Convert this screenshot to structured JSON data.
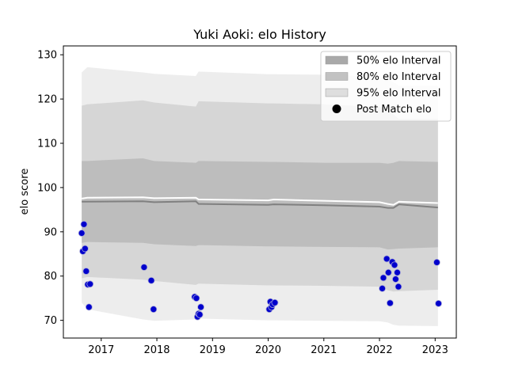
{
  "chart_data": {
    "type": "line",
    "title": "Yuki Aoki: elo History",
    "xlabel": "",
    "ylabel": "elo score",
    "xlim": [
      2016.32,
      2023.38
    ],
    "ylim": [
      66,
      132
    ],
    "x_ticks": [
      2017,
      2018,
      2019,
      2020,
      2021,
      2022,
      2023
    ],
    "y_ticks": [
      70,
      80,
      90,
      100,
      110,
      120,
      130
    ],
    "grid": false,
    "legend_position": "upper right",
    "legend": [
      {
        "label": "50% elo Interval",
        "kind": "band",
        "color": "#a9a9a9"
      },
      {
        "label": "80% elo Interval",
        "kind": "band",
        "color": "#c2c2c2"
      },
      {
        "label": "95% elo Interval",
        "kind": "band",
        "color": "#dedede"
      },
      {
        "label": "Post Match elo",
        "kind": "marker",
        "color": "#000000"
      }
    ],
    "bands": {
      "x": [
        2016.65,
        2016.75,
        2017.75,
        2017.95,
        2018.7,
        2018.75,
        2020.0,
        2020.1,
        2021.0,
        2022.0,
        2022.15,
        2022.25,
        2022.35,
        2023.05
      ],
      "p95_upper": [
        126.0,
        127.2,
        126.0,
        125.7,
        125.2,
        126.2,
        125.6,
        125.6,
        125.5,
        125.0,
        124.5,
        123.8,
        123.0,
        123.0
      ],
      "p80_upper": [
        118.5,
        118.8,
        119.7,
        119.2,
        118.3,
        119.5,
        119.0,
        119.0,
        118.8,
        118.2,
        117.8,
        116.5,
        115.5,
        115.5
      ],
      "p50_upper": [
        106.0,
        106.0,
        106.6,
        106.0,
        105.6,
        106.0,
        105.8,
        105.8,
        105.6,
        105.6,
        105.4,
        105.6,
        106.0,
        105.8
      ],
      "p50_lower": [
        87.5,
        87.7,
        87.5,
        87.2,
        86.8,
        87.0,
        86.7,
        86.7,
        86.6,
        86.5,
        86.0,
        86.1,
        86.2,
        86.5
      ],
      "p80_lower": [
        79.5,
        79.8,
        79.2,
        78.9,
        78.0,
        78.3,
        77.9,
        77.9,
        77.8,
        77.6,
        76.8,
        76.5,
        76.6,
        76.9
      ],
      "p95_lower": [
        74.0,
        72.5,
        70.2,
        69.9,
        70.2,
        70.4,
        70.0,
        70.0,
        69.9,
        69.8,
        69.5,
        69.0,
        68.8,
        68.7
      ]
    },
    "series": [
      {
        "name": "median",
        "color": "#808080",
        "x": [
          2016.65,
          2017.75,
          2017.95,
          2018.7,
          2018.75,
          2020.0,
          2020.1,
          2021.0,
          2022.0,
          2022.15,
          2022.25,
          2022.35,
          2023.05
        ],
        "values": [
          96.8,
          96.9,
          96.7,
          96.9,
          96.3,
          96.1,
          96.2,
          96.0,
          95.7,
          95.4,
          95.4,
          96.2,
          95.5
        ]
      },
      {
        "name": "mean",
        "color": "#ffffff",
        "x": [
          2016.65,
          2016.75,
          2017.75,
          2017.95,
          2018.7,
          2018.75,
          2020.0,
          2020.1,
          2021.0,
          2022.0,
          2022.15,
          2022.25,
          2022.35,
          2023.05
        ],
        "values": [
          97.5,
          97.7,
          97.8,
          97.6,
          97.7,
          97.3,
          97.1,
          97.3,
          97.0,
          96.7,
          96.3,
          96.1,
          96.8,
          96.5
        ]
      }
    ],
    "points": {
      "name": "Post Match elo",
      "color": "#0000cc",
      "x": [
        2016.65,
        2016.67,
        2016.69,
        2016.71,
        2016.73,
        2016.76,
        2016.78,
        2016.8,
        2017.77,
        2017.9,
        2017.94,
        2018.68,
        2018.71,
        2018.73,
        2018.75,
        2018.77,
        2018.79,
        2020.02,
        2020.04,
        2020.06,
        2020.08,
        2020.12,
        2022.05,
        2022.07,
        2022.13,
        2022.16,
        2022.19,
        2022.23,
        2022.27,
        2022.29,
        2022.32,
        2022.34,
        2023.03,
        2023.06
      ],
      "y": [
        89.7,
        85.6,
        91.7,
        86.2,
        81.1,
        78.1,
        73.0,
        78.2,
        82.0,
        79.0,
        72.5,
        75.3,
        75.0,
        70.8,
        71.5,
        71.3,
        73.0,
        72.5,
        74.2,
        73.0,
        73.6,
        74.0,
        77.2,
        79.6,
        83.9,
        80.8,
        73.9,
        83.2,
        82.5,
        79.3,
        80.8,
        77.6,
        83.1,
        73.8
      ]
    }
  }
}
